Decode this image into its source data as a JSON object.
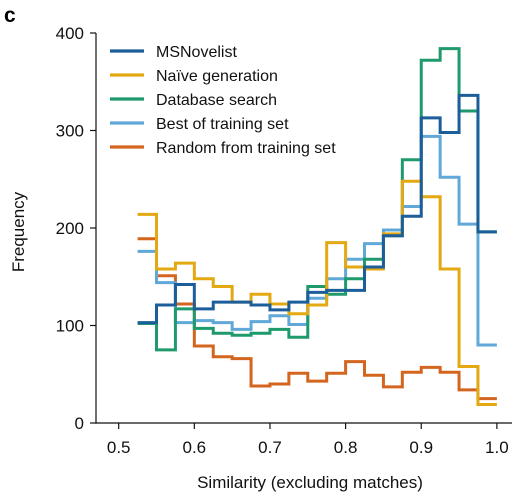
{
  "panel_label": "c",
  "chart_data": {
    "type": "line",
    "style": "step-histogram",
    "xlabel": "Similarity (excluding matches)",
    "ylabel": "Frequency",
    "xlim": [
      0.47,
      1.02
    ],
    "ylim": [
      0,
      400
    ],
    "xticks": [
      0.5,
      0.6,
      0.7,
      0.8,
      0.9,
      1.0
    ],
    "xtick_labels": [
      "0.5",
      "0.6",
      "0.7",
      "0.8",
      "0.9",
      "1.0"
    ],
    "yticks": [
      0,
      100,
      200,
      300,
      400
    ],
    "ytick_labels": [
      "0",
      "100",
      "200",
      "300",
      "400"
    ],
    "grid": false,
    "legend_position": "top-left",
    "bin_edges": [
      0.525,
      0.55,
      0.575,
      0.6,
      0.625,
      0.65,
      0.675,
      0.7,
      0.725,
      0.75,
      0.775,
      0.8,
      0.825,
      0.85,
      0.875,
      0.9,
      0.925,
      0.95,
      0.975,
      1.0
    ],
    "series": [
      {
        "name": "MSNovelist",
        "color": "#1b5e9a",
        "values": [
          103,
          121,
          142,
          117,
          124,
          124,
          121,
          116,
          124,
          134,
          136,
          136,
          160,
          192,
          212,
          313,
          298,
          336,
          196
        ]
      },
      {
        "name": "Naïve generation",
        "color": "#e3a812",
        "values": [
          214,
          158,
          164,
          148,
          140,
          124,
          132,
          122,
          112,
          121,
          185,
          160,
          158,
          194,
          248,
          232,
          158,
          58,
          19
        ]
      },
      {
        "name": "Database search",
        "color": "#1f9a6c",
        "values": [
          102,
          75,
          117,
          97,
          92,
          90,
          92,
          96,
          88,
          140,
          132,
          148,
          168,
          192,
          270,
          372,
          384,
          320,
          196
        ]
      },
      {
        "name": "Best of training set",
        "color": "#5fa8d8",
        "values": [
          176,
          144,
          103,
          105,
          103,
          96,
          104,
          110,
          101,
          128,
          148,
          168,
          184,
          198,
          222,
          294,
          252,
          204,
          80
        ]
      },
      {
        "name": "Random from training set",
        "color": "#d3651f",
        "values": [
          189,
          151,
          122,
          79,
          68,
          66,
          38,
          40,
          51,
          43,
          51,
          63,
          49,
          37,
          52,
          57,
          52,
          34,
          25
        ]
      }
    ]
  }
}
